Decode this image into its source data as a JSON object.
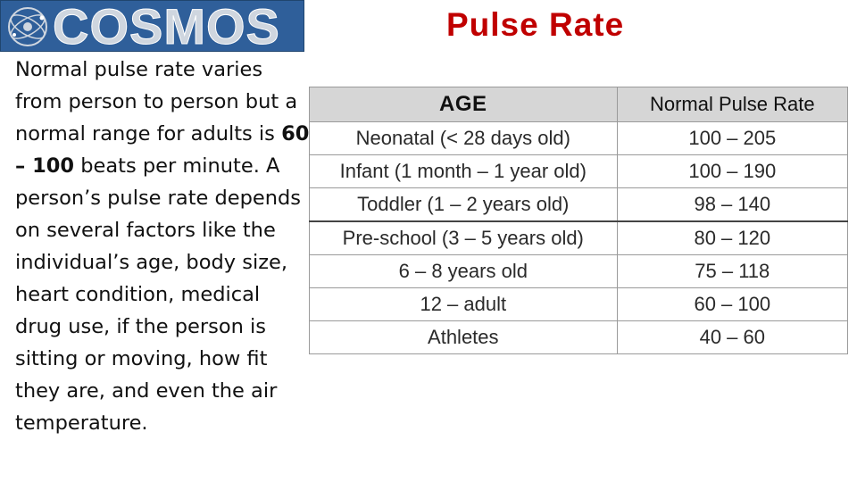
{
  "logo": {
    "text": "COSMOS",
    "icon": "orbit-logo-icon",
    "background_color": "#2f5f9a"
  },
  "title": "Pulse Rate",
  "title_color": "#c00000",
  "paragraph": {
    "part1": "Normal pulse rate varies from person to person but a normal range for adults is ",
    "bold": "60 – 100",
    "part2": " beats per minute. A person’s pulse rate depends on several factors like the individual’s age, body size, heart condition, medical drug use, if the person is sitting or moving, how fit they are, and even the air temperature."
  },
  "table": {
    "headers": {
      "age": "AGE",
      "rate": "Normal  Pulse Rate"
    },
    "rows": [
      {
        "age": "Neonatal  (< 28 days old)",
        "rate": "100 – 205"
      },
      {
        "age": "Infant (1 month – 1 year old)",
        "rate": "100 – 190"
      },
      {
        "age": "Toddler (1 – 2 years old)",
        "rate": "98 – 140"
      },
      {
        "age": "Pre-school  (3 – 5 years old)",
        "rate": "80 – 120"
      },
      {
        "age": "6 – 8 years old",
        "rate": "75 – 118"
      },
      {
        "age": "12 – adult",
        "rate": "60 – 100"
      },
      {
        "age": "Athletes",
        "rate": "40 – 60"
      }
    ]
  }
}
